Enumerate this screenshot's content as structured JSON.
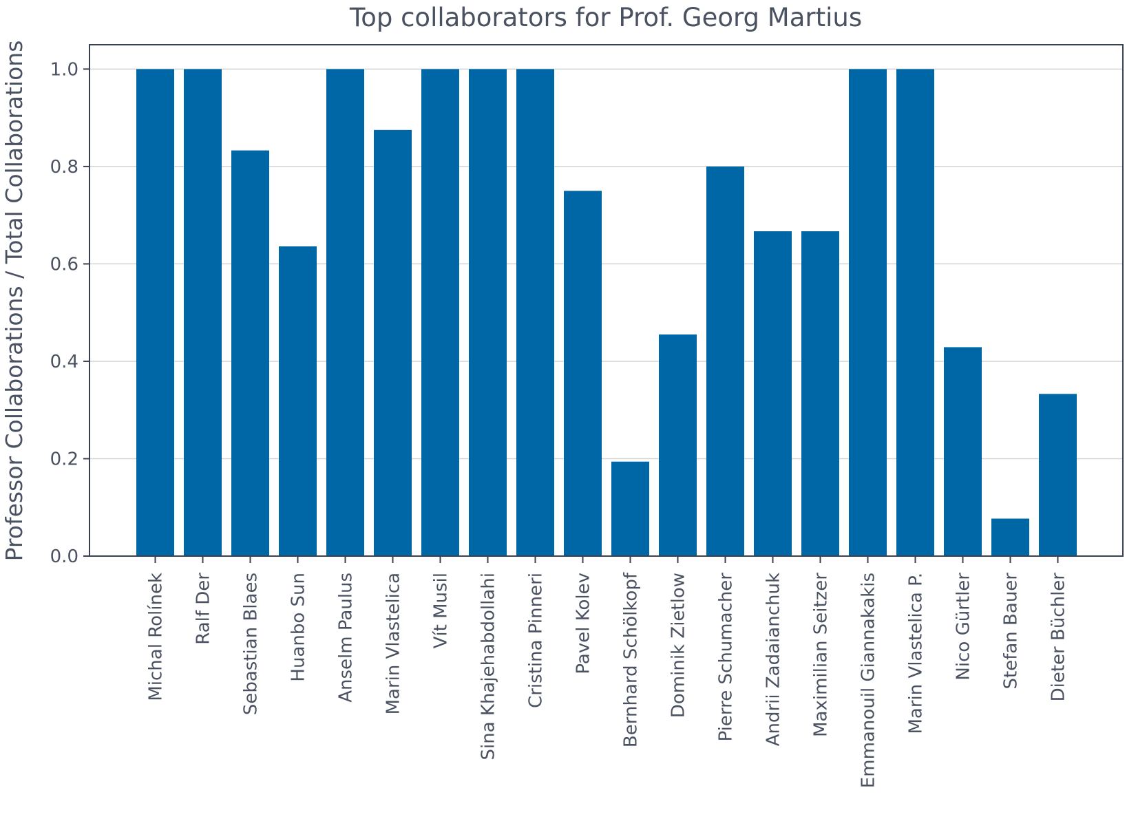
{
  "chart_data": {
    "type": "bar",
    "title": "Top collaborators for Prof. Georg Martius",
    "xlabel": "",
    "ylabel": "Professor Collaborations / Total Collaborations",
    "ylim": [
      0,
      1.05
    ],
    "yticks": [
      "0.0",
      "0.2",
      "0.4",
      "0.6",
      "0.8",
      "1.0"
    ],
    "grid": "horizontal",
    "bar_color": "#0067a7",
    "categories": [
      "Michal Rolínek",
      "Ralf Der",
      "Sebastian Blaes",
      "Huanbo Sun",
      "Anselm Paulus",
      "Marin Vlastelica",
      "Vít Musil",
      "Sina Khajehabdollahi",
      "Cristina Pinneri",
      "Pavel Kolev",
      "Bernhard Schölkopf",
      "Dominik Zietlow",
      "Pierre Schumacher",
      "Andrii Zadaianchuk",
      "Maximilian Seitzer",
      "Emmanouil Giannakakis",
      "Marin Vlastelica P.",
      "Nico Gürtler",
      "Stefan Bauer",
      "Dieter Büchler"
    ],
    "values": [
      1.0,
      1.0,
      0.833,
      0.636,
      1.0,
      0.875,
      1.0,
      1.0,
      1.0,
      0.75,
      0.194,
      0.455,
      0.8,
      0.667,
      0.667,
      1.0,
      1.0,
      0.429,
      0.077,
      0.333
    ]
  }
}
